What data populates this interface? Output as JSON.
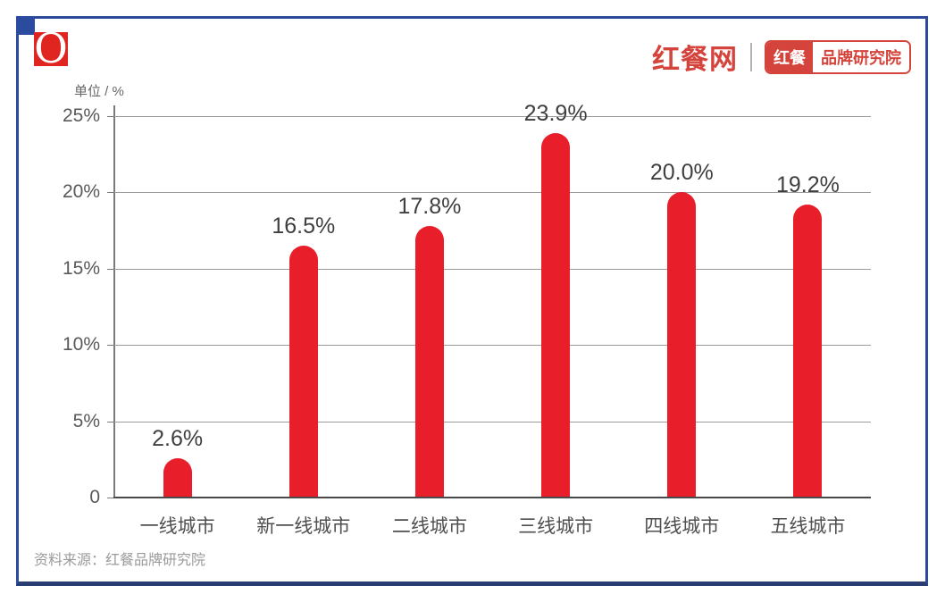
{
  "page": {
    "background": "#ffffff",
    "frame_color": "#2d4a9c",
    "frame_bottom_color": "#2a3e74",
    "corner_accent_color": "#2b4b9e"
  },
  "header": {
    "logo_letter": "O",
    "logo_color": "#e02420",
    "brand_name": "红餐网",
    "badge_left": "红餐",
    "badge_right": "品牌研究院",
    "brand_color": "#d5443c"
  },
  "chart_data": {
    "type": "bar",
    "title": "",
    "unit_label": "单位 / %",
    "categories": [
      "一线城市",
      "新一线城市",
      "二线城市",
      "三线城市",
      "四线城市",
      "五线城市"
    ],
    "values": [
      2.6,
      16.5,
      17.8,
      23.9,
      20.0,
      19.2
    ],
    "value_labels": [
      "2.6%",
      "16.5%",
      "17.8%",
      "23.9%",
      "20.0%",
      "19.2%"
    ],
    "y_axis": {
      "max": 25,
      "ticks": [
        {
          "value": 25,
          "label": "25%"
        },
        {
          "value": 20,
          "label": "20%"
        },
        {
          "value": 15,
          "label": "15%"
        },
        {
          "value": 10,
          "label": "10%"
        },
        {
          "value": 5,
          "label": "5%"
        },
        {
          "value": 0,
          "label": "0"
        }
      ]
    },
    "grid": true,
    "legend": false,
    "bar_color": "#e81f2b",
    "label_color": "#3f3f3f"
  },
  "footer": {
    "source": "资料来源：红餐品牌研究院"
  }
}
